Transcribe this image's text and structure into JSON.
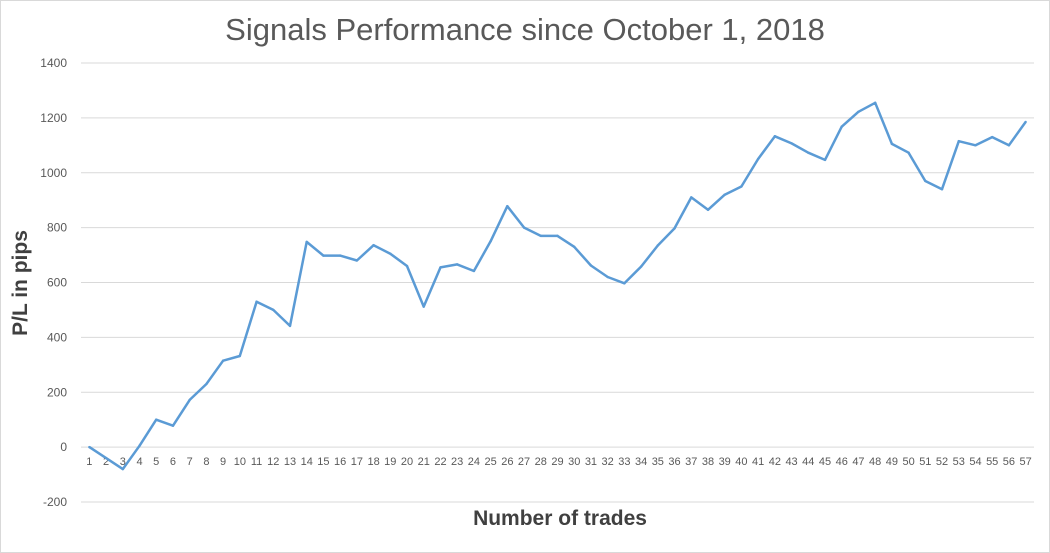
{
  "chart_data": {
    "type": "line",
    "title": "Signals Performance since October 1, 2018",
    "xlabel": "Number of trades",
    "ylabel": "P/L in pips",
    "ylim": [
      -200,
      1400
    ],
    "yticks": [
      -200,
      0,
      200,
      400,
      600,
      800,
      1000,
      1200,
      1400
    ],
    "grid": true,
    "legend": "none",
    "line_color": "#5b9bd5",
    "categories": [
      "1",
      "2",
      "3",
      "4",
      "5",
      "6",
      "7",
      "8",
      "9",
      "10",
      "11",
      "12",
      "13",
      "14",
      "15",
      "16",
      "17",
      "18",
      "19",
      "20",
      "21",
      "22",
      "23",
      "24",
      "25",
      "26",
      "27",
      "28",
      "29",
      "30",
      "31",
      "32",
      "33",
      "34",
      "35",
      "36",
      "37",
      "38",
      "39",
      "40",
      "41",
      "42",
      "43",
      "44",
      "45",
      "46",
      "47",
      "48",
      "49",
      "50",
      "51",
      "52",
      "53",
      "54",
      "55",
      "56",
      "57"
    ],
    "series": [
      {
        "values": [
          0,
          -40,
          -80,
          5,
          100,
          78,
          172,
          230,
          315,
          332,
          530,
          500,
          442,
          748,
          698,
          698,
          680,
          736,
          705,
          660,
          512,
          655,
          666,
          642,
          750,
          878,
          800,
          770,
          770,
          730,
          662,
          620,
          597,
          658,
          735,
          797,
          910,
          865,
          920,
          950,
          1050,
          1133,
          1107,
          1073,
          1047,
          1168,
          1222,
          1255,
          1105,
          1073,
          970,
          940,
          1115,
          1100,
          1130,
          1100,
          1185
        ]
      }
    ]
  }
}
